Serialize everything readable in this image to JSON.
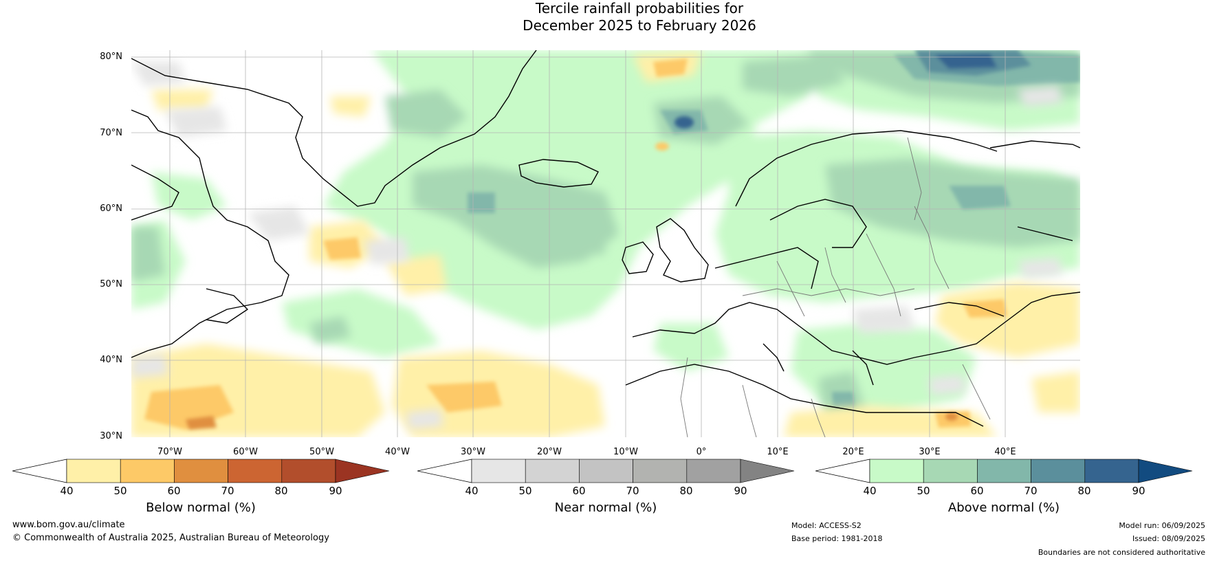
{
  "title": {
    "line1": "Tercile rainfall probabilities for",
    "line2": "December 2025 to February 2026"
  },
  "map": {
    "lat_labels": [
      "80°N",
      "70°N",
      "60°N",
      "50°N",
      "40°N",
      "30°N"
    ],
    "lon_labels": [
      "70°W",
      "60°W",
      "50°W",
      "40°W",
      "30°W",
      "20°W",
      "10°W",
      "0°",
      "10°E",
      "20°E",
      "30°E",
      "40°E"
    ]
  },
  "colorbars": [
    {
      "title": "Below normal (%)",
      "ticks": [
        "40",
        "50",
        "60",
        "70",
        "80",
        "90"
      ],
      "colors": [
        "#fff0a8",
        "#fdc967",
        "#e08f3f",
        "#cc6532",
        "#b24e2c",
        "#9b3422"
      ]
    },
    {
      "title": "Near normal (%)",
      "ticks": [
        "40",
        "50",
        "60",
        "70",
        "80",
        "90"
      ],
      "colors": [
        "#e6e6e6",
        "#d3d3d3",
        "#c3c3c3",
        "#b2b3b0",
        "#a1a1a1",
        "#838383"
      ]
    },
    {
      "title": "Above normal (%)",
      "ticks": [
        "40",
        "50",
        "60",
        "70",
        "80",
        "90"
      ],
      "colors": [
        "#c8fac8",
        "#a7d8b4",
        "#82b7aa",
        "#5b8f9c",
        "#35648f",
        "#124b80"
      ]
    }
  ],
  "footer": {
    "website": "www.bom.gov.au/climate",
    "copyright": "© Commonwealth of Australia 2025, Australian Bureau of Meteorology",
    "model": "Model: ACCESS-S2",
    "base_period": "Base period: 1981-2018",
    "model_run": "Model run: 06/09/2025",
    "issued": "Issued: 08/09/2025",
    "disclaimer": "Boundaries are not considered authoritative"
  }
}
